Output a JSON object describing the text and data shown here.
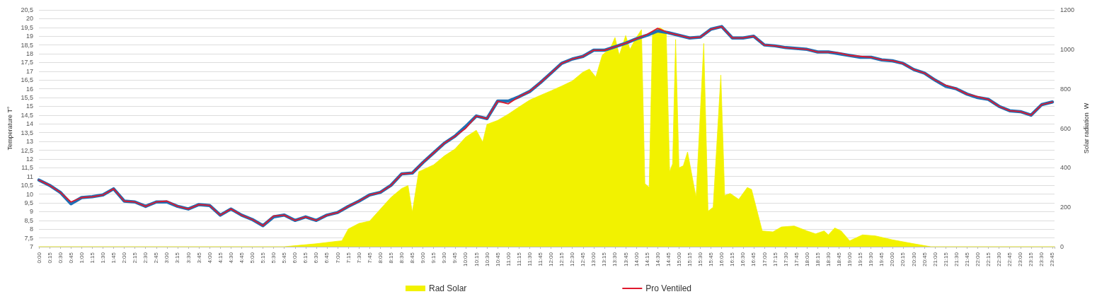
{
  "chart_data": {
    "type": "line",
    "ylabel": "Temperature T°",
    "y2label": "Solar radiation  W",
    "grid": "y",
    "legend": "bottom",
    "xlim": [
      0,
      23.8
    ],
    "xticks": [
      {
        "value": 0,
        "label": "0:00"
      },
      {
        "value": 0.25,
        "label": "0:15"
      },
      {
        "value": 0.5,
        "label": "0:30"
      },
      {
        "value": 0.75,
        "label": "0:45"
      },
      {
        "value": 1,
        "label": "1:00"
      },
      {
        "value": 1.25,
        "label": "1:15"
      },
      {
        "value": 1.5,
        "label": "1:30"
      },
      {
        "value": 1.75,
        "label": "1:45"
      },
      {
        "value": 2,
        "label": "2:00"
      },
      {
        "value": 2.25,
        "label": "2:15"
      },
      {
        "value": 2.5,
        "label": "2:30"
      },
      {
        "value": 2.75,
        "label": "2:45"
      },
      {
        "value": 3,
        "label": "3:00"
      },
      {
        "value": 3.25,
        "label": "3:15"
      },
      {
        "value": 3.5,
        "label": "3:30"
      },
      {
        "value": 3.75,
        "label": "3:45"
      },
      {
        "value": 4,
        "label": "4:00"
      },
      {
        "value": 4.25,
        "label": "4:15"
      },
      {
        "value": 4.5,
        "label": "4:30"
      },
      {
        "value": 4.75,
        "label": "4:45"
      },
      {
        "value": 5,
        "label": "5:00"
      },
      {
        "value": 5.25,
        "label": "5:15"
      },
      {
        "value": 5.5,
        "label": "5:30"
      },
      {
        "value": 5.75,
        "label": "5:45"
      },
      {
        "value": 6,
        "label": "6:00"
      },
      {
        "value": 6.25,
        "label": "6:15"
      },
      {
        "value": 6.5,
        "label": "6:30"
      },
      {
        "value": 6.75,
        "label": "6:45"
      },
      {
        "value": 7,
        "label": "7:00"
      },
      {
        "value": 7.25,
        "label": "7:15"
      },
      {
        "value": 7.5,
        "label": "7:30"
      },
      {
        "value": 7.75,
        "label": "7:45"
      },
      {
        "value": 8,
        "label": "8:00"
      },
      {
        "value": 8.25,
        "label": "8:15"
      },
      {
        "value": 8.5,
        "label": "8:30"
      },
      {
        "value": 8.75,
        "label": "8:45"
      },
      {
        "value": 9,
        "label": "9:00"
      },
      {
        "value": 9.25,
        "label": "9:15"
      },
      {
        "value": 9.5,
        "label": "9:30"
      },
      {
        "value": 9.75,
        "label": "9:45"
      },
      {
        "value": 10,
        "label": "10:00"
      },
      {
        "value": 10.25,
        "label": "10:15"
      },
      {
        "value": 10.5,
        "label": "10:30"
      },
      {
        "value": 10.75,
        "label": "10:45"
      },
      {
        "value": 11,
        "label": "11:00"
      },
      {
        "value": 11.25,
        "label": "11:15"
      },
      {
        "value": 11.5,
        "label": "11:30"
      },
      {
        "value": 11.75,
        "label": "11:45"
      },
      {
        "value": 12,
        "label": "12:00"
      },
      {
        "value": 12.25,
        "label": "12:15"
      },
      {
        "value": 12.5,
        "label": "12:30"
      },
      {
        "value": 12.75,
        "label": "12:45"
      },
      {
        "value": 13,
        "label": "13:00"
      },
      {
        "value": 13.25,
        "label": "13:15"
      },
      {
        "value": 13.5,
        "label": "13:30"
      },
      {
        "value": 13.75,
        "label": "13:45"
      },
      {
        "value": 14,
        "label": "14:00"
      },
      {
        "value": 14.25,
        "label": "14:15"
      },
      {
        "value": 14.5,
        "label": "14:30"
      },
      {
        "value": 14.75,
        "label": "14:45"
      },
      {
        "value": 15,
        "label": "15:00"
      },
      {
        "value": 15.25,
        "label": "15:15"
      },
      {
        "value": 15.5,
        "label": "15:30"
      },
      {
        "value": 15.75,
        "label": "15:45"
      },
      {
        "value": 16,
        "label": "16:00"
      },
      {
        "value": 16.25,
        "label": "16:15"
      },
      {
        "value": 16.5,
        "label": "16:30"
      },
      {
        "value": 16.75,
        "label": "16:45"
      },
      {
        "value": 17,
        "label": "17:00"
      },
      {
        "value": 17.25,
        "label": "17:15"
      },
      {
        "value": 17.5,
        "label": "17:30"
      },
      {
        "value": 17.75,
        "label": "17:45"
      },
      {
        "value": 18,
        "label": "18:00"
      },
      {
        "value": 18.25,
        "label": "18:15"
      },
      {
        "value": 18.5,
        "label": "18:30"
      },
      {
        "value": 18.75,
        "label": "18:45"
      },
      {
        "value": 19,
        "label": "19:00"
      },
      {
        "value": 19.25,
        "label": "19:15"
      },
      {
        "value": 19.5,
        "label": "19:30"
      },
      {
        "value": 19.75,
        "label": "19:45"
      },
      {
        "value": 20,
        "label": "20:00"
      },
      {
        "value": 20.25,
        "label": "20:15"
      },
      {
        "value": 20.5,
        "label": "20:30"
      },
      {
        "value": 20.75,
        "label": "20:45"
      },
      {
        "value": 21,
        "label": "21:00"
      },
      {
        "value": 21.25,
        "label": "21:15"
      },
      {
        "value": 21.5,
        "label": "21:30"
      },
      {
        "value": 21.75,
        "label": "21:45"
      },
      {
        "value": 22,
        "label": "22:00"
      },
      {
        "value": 22.25,
        "label": "22:15"
      },
      {
        "value": 22.5,
        "label": "22:30"
      },
      {
        "value": 22.75,
        "label": "22:45"
      },
      {
        "value": 23,
        "label": "23:00"
      },
      {
        "value": 23.25,
        "label": "23:15"
      },
      {
        "value": 23.5,
        "label": "23:30"
      },
      {
        "value": 23.75,
        "label": "23:45"
      }
    ],
    "ylim": [
      7,
      20.5
    ],
    "yticks": [
      7,
      {
        "value": 7.5,
        "label": "7,5"
      },
      8,
      {
        "value": 8.5,
        "label": "8,5"
      },
      9,
      {
        "value": 9.5,
        "label": "9,5"
      },
      10,
      {
        "value": 10.5,
        "label": "10,5"
      },
      11,
      {
        "value": 11.5,
        "label": "11,5"
      },
      12,
      {
        "value": 12.5,
        "label": "12,5"
      },
      13,
      {
        "value": 13.5,
        "label": "13,5"
      },
      14,
      {
        "value": 14.5,
        "label": "14,5"
      },
      15,
      {
        "value": 15.5,
        "label": "15,5"
      },
      16,
      {
        "value": 16.5,
        "label": "16,5"
      },
      17,
      {
        "value": 17.5,
        "label": "17,5"
      },
      18,
      {
        "value": 18.5,
        "label": "18,5"
      },
      19,
      {
        "value": 19.5,
        "label": "19,5"
      },
      20,
      {
        "value": 20.5,
        "label": "20,5"
      }
    ],
    "y2lim": [
      0,
      1200
    ],
    "y2ticks": [
      0,
      200,
      400,
      600,
      800,
      1000,
      1200
    ],
    "x": [
      0,
      0.25,
      0.5,
      0.75,
      1,
      1.25,
      1.5,
      1.75,
      2,
      2.25,
      2.5,
      2.75,
      3,
      3.25,
      3.5,
      3.75,
      4,
      4.25,
      4.5,
      4.75,
      5,
      5.25,
      5.5,
      5.75,
      6,
      6.25,
      6.5,
      6.75,
      7,
      7.25,
      7.5,
      7.75,
      8,
      8.25,
      8.5,
      8.75,
      9,
      9.25,
      9.5,
      9.75,
      10,
      10.25,
      10.5,
      10.75,
      11,
      11.25,
      11.5,
      11.75,
      12,
      12.25,
      12.5,
      12.75,
      13,
      13.25,
      13.5,
      13.75,
      14,
      14.25,
      14.5,
      14.75,
      15,
      15.25,
      15.5,
      15.75,
      16,
      16.25,
      16.5,
      16.75,
      17,
      17.25,
      17.5,
      17.75,
      18,
      18.25,
      18.5,
      18.75,
      19,
      19.25,
      19.5,
      19.75,
      20,
      20.25,
      20.5,
      20.75,
      21,
      21.25,
      21.5,
      21.75,
      22,
      22.25,
      22.5,
      22.75,
      23,
      23.25,
      23.5,
      23.75
    ],
    "series": [
      {
        "name": "Rad Solar",
        "type": "area",
        "axis": "y2",
        "color": "#f2f200",
        "x": [
          0,
          5.75,
          6,
          6.5,
          7,
          7.1,
          7.25,
          7.5,
          7.75,
          8,
          8.25,
          8.5,
          8.65,
          8.75,
          8.9,
          9,
          9.25,
          9.5,
          9.75,
          10,
          10.25,
          10.4,
          10.5,
          10.75,
          11,
          11.25,
          11.5,
          11.75,
          12,
          12.25,
          12.5,
          12.75,
          12.9,
          13.05,
          13.2,
          13.4,
          13.5,
          13.6,
          13.75,
          13.85,
          14,
          14.12,
          14.2,
          14.3,
          14.38,
          14.55,
          14.7,
          14.78,
          14.85,
          14.92,
          15,
          15.1,
          15.2,
          15.4,
          15.58,
          15.68,
          15.8,
          15.98,
          16.07,
          16.2,
          16.4,
          16.6,
          16.7,
          16.95,
          17.2,
          17.4,
          17.7,
          18,
          18.2,
          18.4,
          18.5,
          18.65,
          18.8,
          19,
          19.3,
          19.6,
          20,
          20.5,
          20.9,
          23.8
        ],
        "values": [
          0,
          0,
          5,
          15,
          28,
          30,
          90,
          118,
          130,
          190,
          250,
          295,
          310,
          175,
          380,
          390,
          415,
          460,
          495,
          555,
          590,
          530,
          620,
          640,
          672,
          708,
          743,
          767,
          790,
          814,
          840,
          885,
          900,
          860,
          970,
          1010,
          1060,
          970,
          1070,
          1000,
          1060,
          1100,
          320,
          300,
          1090,
          1110,
          1090,
          380,
          420,
          1050,
          400,
          410,
          480,
          250,
          1030,
          180,
          200,
          870,
          260,
          270,
          240,
          300,
          290,
          80,
          75,
          100,
          105,
          80,
          65,
          80,
          60,
          95,
          80,
          30,
          60,
          55,
          35,
          15,
          0,
          0
        ]
      },
      {
        "color": "#1f6fb4",
        "values": [
          10.8,
          10.5,
          10.1,
          9.45,
          9.8,
          9.85,
          9.95,
          10.3,
          9.6,
          9.55,
          9.3,
          9.55,
          9.55,
          9.3,
          9.15,
          9.4,
          9.35,
          8.8,
          9.15,
          8.8,
          8.55,
          8.2,
          8.7,
          8.8,
          8.5,
          8.7,
          8.5,
          8.8,
          8.95,
          9.3,
          9.6,
          9.95,
          10.1,
          10.5,
          11.15,
          11.2,
          11.8,
          12.35,
          12.9,
          13.3,
          13.85,
          14.45,
          14.3,
          15.3,
          15.3,
          15.55,
          15.85,
          16.35,
          16.9,
          17.45,
          17.7,
          17.85,
          18.2,
          18.2,
          18.4,
          18.6,
          18.85,
          19.05,
          19.3,
          19.2,
          19.05,
          18.9,
          18.95,
          19.4,
          19.55,
          18.9,
          18.9,
          19.0,
          18.5,
          18.45,
          18.35,
          18.3,
          18.25,
          18.1,
          18.1,
          18.0,
          17.9,
          17.8,
          17.8,
          17.65,
          17.6,
          17.45,
          17.1,
          16.9,
          16.5,
          16.15,
          16.0,
          15.7,
          15.5,
          15.4,
          15.0,
          14.75,
          14.7,
          14.5,
          15.1,
          15.25
        ]
      },
      {
        "name": "Pro Ventiled",
        "color": "#e0182d",
        "values": [
          10.8,
          10.5,
          10.1,
          9.55,
          9.8,
          9.85,
          9.95,
          10.3,
          9.6,
          9.55,
          9.3,
          9.55,
          9.6,
          9.3,
          9.15,
          9.4,
          9.35,
          8.8,
          9.15,
          8.8,
          8.55,
          8.2,
          8.75,
          8.8,
          8.5,
          8.7,
          8.5,
          8.8,
          8.95,
          9.3,
          9.6,
          9.95,
          10.1,
          10.5,
          11.15,
          11.2,
          11.8,
          12.35,
          12.9,
          13.3,
          13.75,
          14.45,
          14.3,
          15.3,
          15.15,
          15.55,
          15.85,
          16.35,
          16.9,
          17.45,
          17.7,
          17.85,
          18.2,
          18.2,
          18.4,
          18.6,
          18.85,
          19.1,
          19.45,
          19.2,
          19.05,
          18.9,
          18.95,
          19.4,
          19.55,
          18.9,
          18.9,
          19.0,
          18.5,
          18.45,
          18.35,
          18.3,
          18.25,
          18.1,
          18.1,
          18.05,
          17.9,
          17.85,
          17.8,
          17.65,
          17.6,
          17.45,
          17.1,
          16.9,
          16.5,
          16.2,
          16.0,
          15.7,
          15.55,
          15.4,
          15.0,
          14.75,
          14.7,
          14.5,
          15.1,
          15.25
        ]
      }
    ]
  }
}
